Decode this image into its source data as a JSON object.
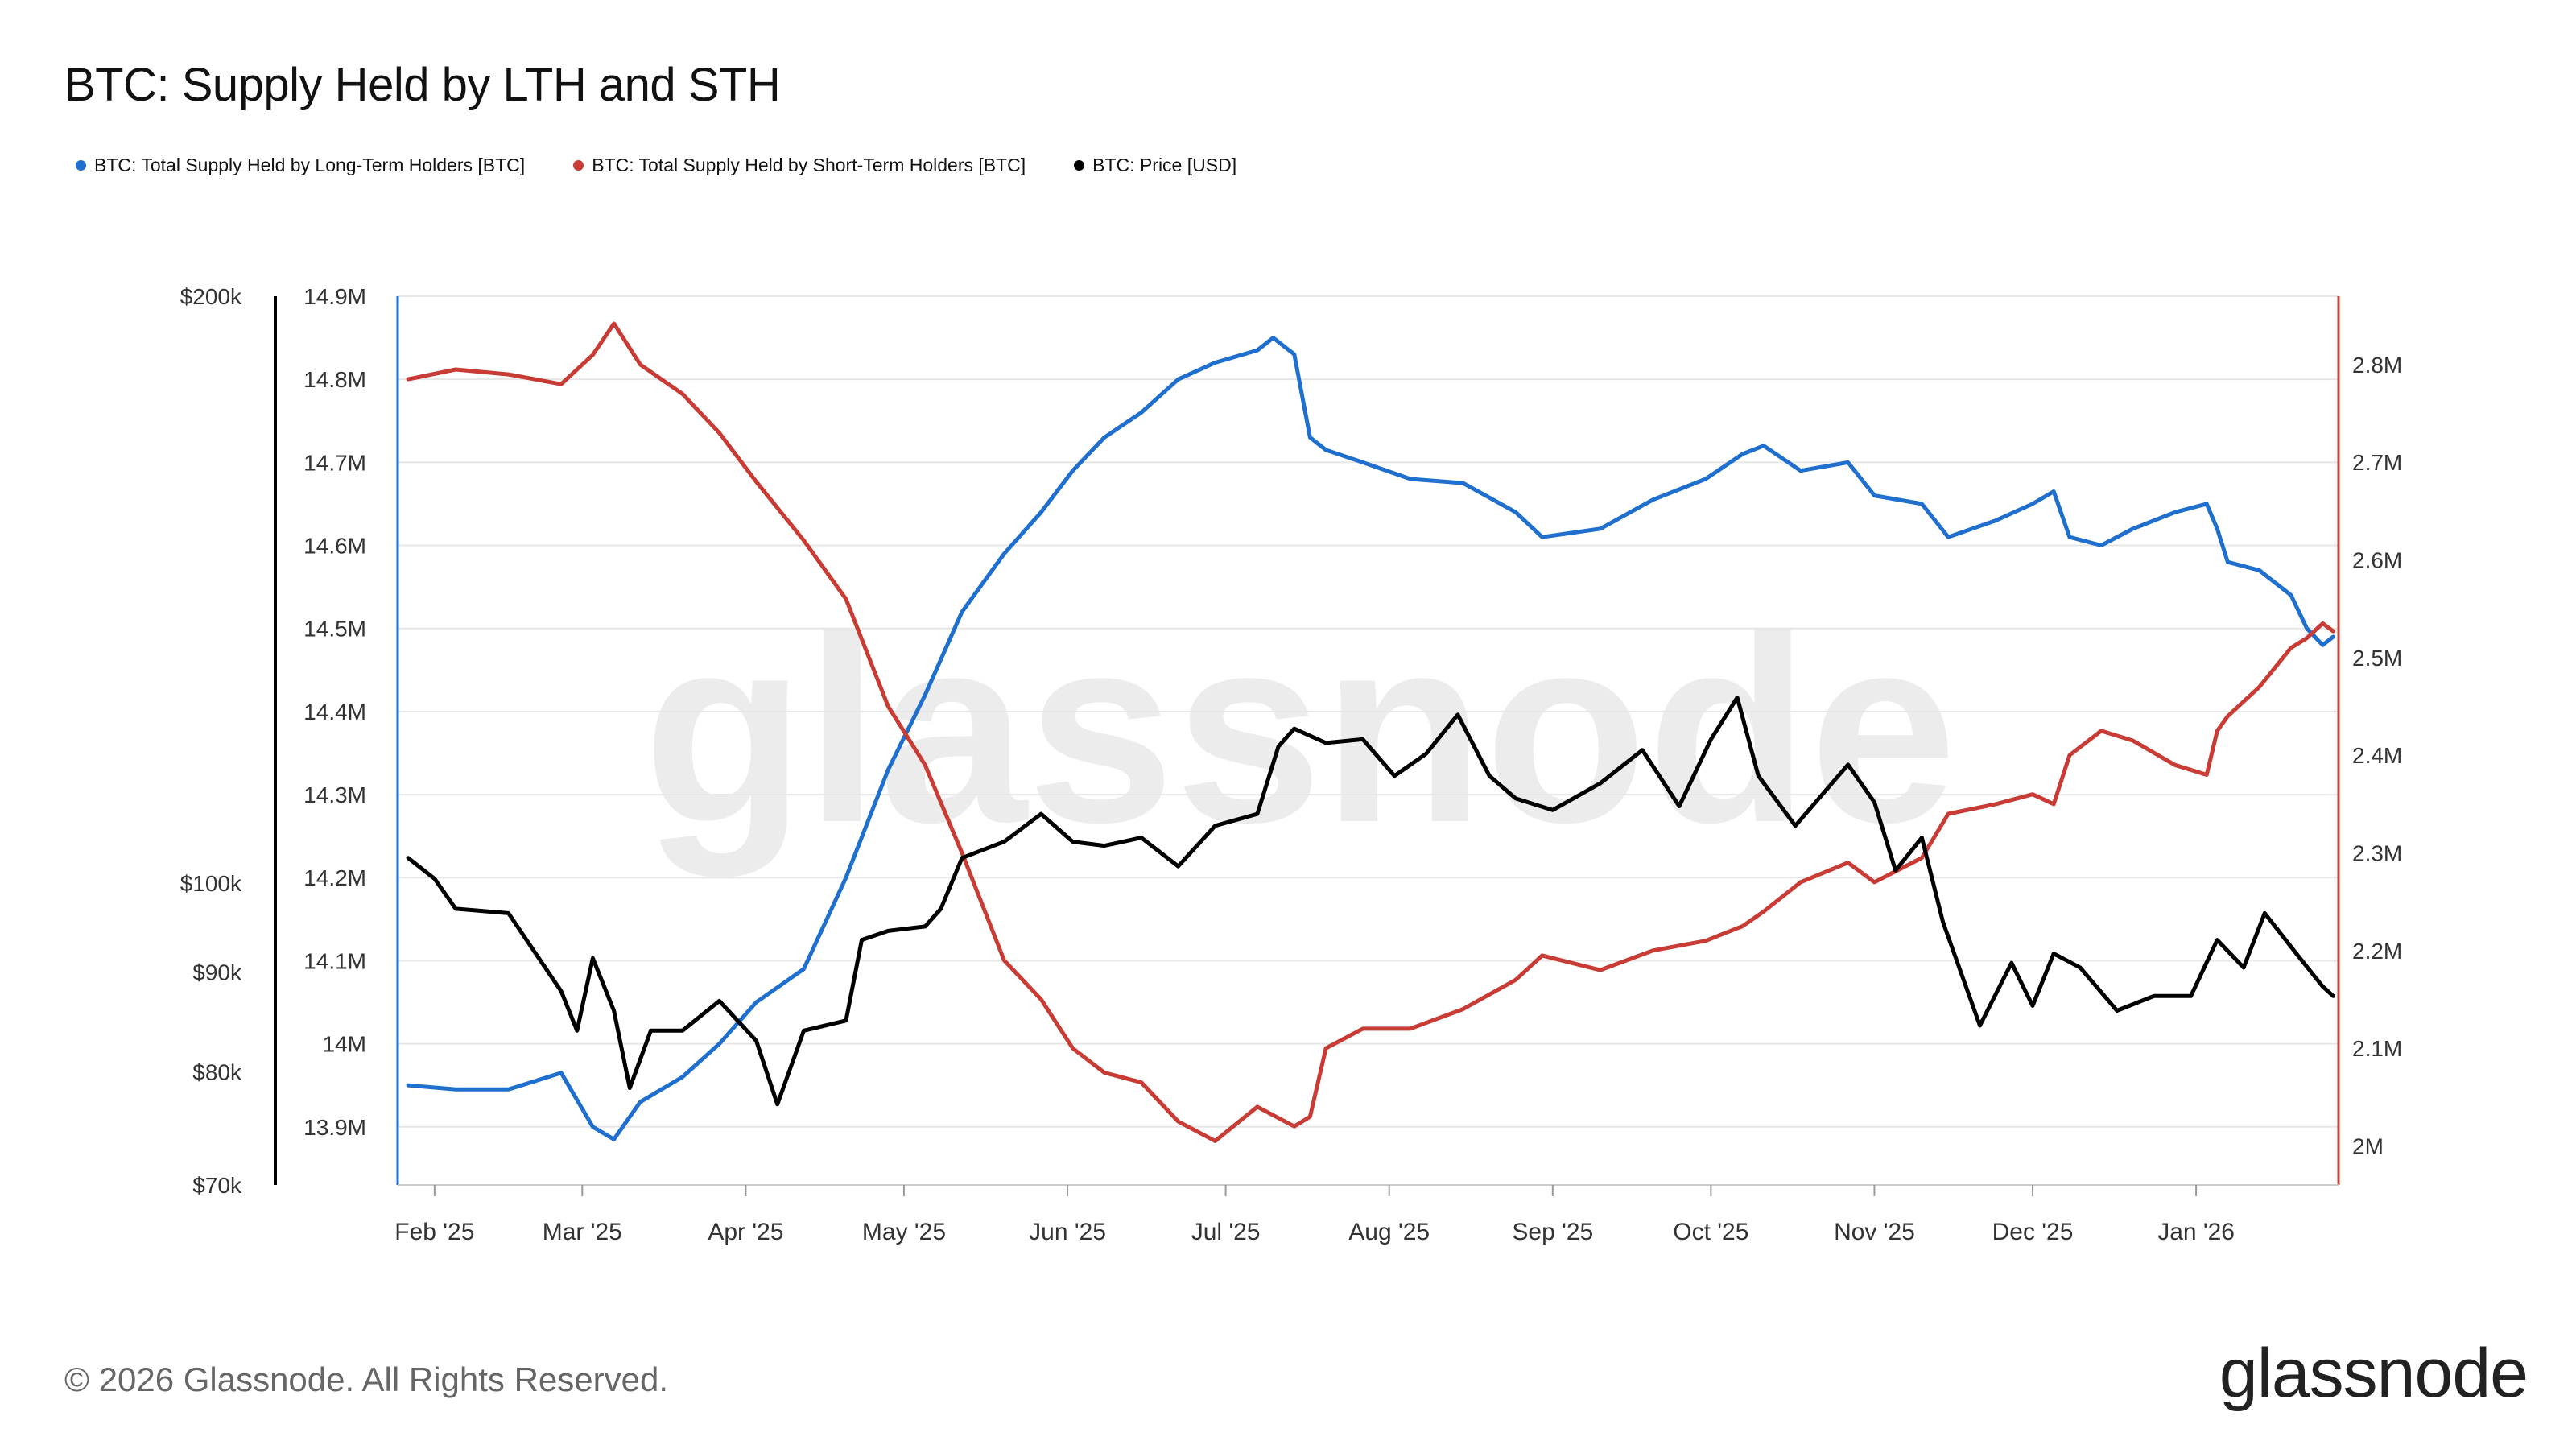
{
  "title": "BTC: Supply Held by LTH and STH",
  "footer": "© 2026 Glassnode. All Rights Reserved.",
  "logo_text": "glassnode",
  "watermark_text": "glassnode",
  "colors": {
    "lth": "#1f6fcf",
    "sth": "#c83c35",
    "price": "#000000"
  },
  "chart_data": {
    "type": "line",
    "title": "BTC: Supply Held by LTH and STH",
    "x_range": [
      "2025-01-25",
      "2026-01-28"
    ],
    "x_tick_labels": [
      "Feb '25",
      "Mar '25",
      "Apr '25",
      "May '25",
      "Jun '25",
      "Jul '25",
      "Aug '25",
      "Sep '25",
      "Oct '25",
      "Nov '25",
      "Dec '25",
      "Jan '26"
    ],
    "axes": {
      "price": {
        "scale": "log",
        "range": [
          70000,
          200000
        ],
        "ticks": [
          70000,
          80000,
          90000,
          100000,
          200000
        ],
        "tick_labels": [
          "$70k",
          "$80k",
          "$90k",
          "$100k",
          "$200k"
        ]
      },
      "lth": {
        "range": [
          13830000,
          14900000
        ],
        "ticks": [
          13900000,
          14000000,
          14100000,
          14200000,
          14300000,
          14400000,
          14500000,
          14600000,
          14700000,
          14800000,
          14900000
        ],
        "tick_labels": [
          "13.9M",
          "14M",
          "14.1M",
          "14.2M",
          "14.3M",
          "14.4M",
          "14.5M",
          "14.6M",
          "14.7M",
          "14.8M",
          "14.9M"
        ]
      },
      "sth": {
        "range": [
          1960000,
          2870000
        ],
        "ticks": [
          2000000,
          2100000,
          2200000,
          2300000,
          2400000,
          2500000,
          2600000,
          2700000,
          2800000
        ],
        "tick_labels": [
          "2M",
          "2.1M",
          "2.2M",
          "2.3M",
          "2.4M",
          "2.5M",
          "2.6M",
          "2.7M",
          "2.8M"
        ]
      }
    },
    "series": [
      {
        "name": "BTC: Total Supply Held by Long-Term Holders [BTC]",
        "axis": "lth",
        "points": [
          [
            "2025-01-27",
            13950000
          ],
          [
            "2025-02-05",
            13945000
          ],
          [
            "2025-02-15",
            13945000
          ],
          [
            "2025-02-25",
            13965000
          ],
          [
            "2025-03-03",
            13900000
          ],
          [
            "2025-03-07",
            13885000
          ],
          [
            "2025-03-12",
            13930000
          ],
          [
            "2025-03-20",
            13960000
          ],
          [
            "2025-03-27",
            14000000
          ],
          [
            "2025-04-03",
            14050000
          ],
          [
            "2025-04-12",
            14090000
          ],
          [
            "2025-04-20",
            14200000
          ],
          [
            "2025-04-28",
            14330000
          ],
          [
            "2025-05-05",
            14420000
          ],
          [
            "2025-05-12",
            14520000
          ],
          [
            "2025-05-20",
            14590000
          ],
          [
            "2025-05-27",
            14640000
          ],
          [
            "2025-06-02",
            14690000
          ],
          [
            "2025-06-08",
            14730000
          ],
          [
            "2025-06-15",
            14760000
          ],
          [
            "2025-06-22",
            14800000
          ],
          [
            "2025-06-29",
            14820000
          ],
          [
            "2025-07-07",
            14835000
          ],
          [
            "2025-07-10",
            14850000
          ],
          [
            "2025-07-14",
            14830000
          ],
          [
            "2025-07-17",
            14730000
          ],
          [
            "2025-07-20",
            14715000
          ],
          [
            "2025-07-27",
            14700000
          ],
          [
            "2025-08-05",
            14680000
          ],
          [
            "2025-08-15",
            14675000
          ],
          [
            "2025-08-25",
            14640000
          ],
          [
            "2025-08-30",
            14610000
          ],
          [
            "2025-09-10",
            14620000
          ],
          [
            "2025-09-20",
            14655000
          ],
          [
            "2025-09-30",
            14680000
          ],
          [
            "2025-10-07",
            14710000
          ],
          [
            "2025-10-11",
            14720000
          ],
          [
            "2025-10-18",
            14690000
          ],
          [
            "2025-10-27",
            14700000
          ],
          [
            "2025-11-01",
            14660000
          ],
          [
            "2025-11-10",
            14650000
          ],
          [
            "2025-11-15",
            14610000
          ],
          [
            "2025-11-24",
            14630000
          ],
          [
            "2025-12-01",
            14650000
          ],
          [
            "2025-12-05",
            14665000
          ],
          [
            "2025-12-08",
            14610000
          ],
          [
            "2025-12-14",
            14600000
          ],
          [
            "2025-12-20",
            14620000
          ],
          [
            "2025-12-28",
            14640000
          ],
          [
            "2026-01-03",
            14650000
          ],
          [
            "2026-01-05",
            14620000
          ],
          [
            "2026-01-07",
            14580000
          ],
          [
            "2026-01-13",
            14570000
          ],
          [
            "2026-01-19",
            14540000
          ],
          [
            "2026-01-22",
            14500000
          ],
          [
            "2026-01-25",
            14480000
          ],
          [
            "2026-01-27",
            14490000
          ]
        ]
      },
      {
        "name": "BTC: Total Supply Held by Short-Term Holders [BTC]",
        "axis": "sth",
        "points": [
          [
            "2025-01-27",
            2785000
          ],
          [
            "2025-02-05",
            2795000
          ],
          [
            "2025-02-15",
            2790000
          ],
          [
            "2025-02-25",
            2780000
          ],
          [
            "2025-03-03",
            2810000
          ],
          [
            "2025-03-07",
            2842000
          ],
          [
            "2025-03-12",
            2800000
          ],
          [
            "2025-03-20",
            2770000
          ],
          [
            "2025-03-27",
            2730000
          ],
          [
            "2025-04-03",
            2680000
          ],
          [
            "2025-04-12",
            2620000
          ],
          [
            "2025-04-20",
            2560000
          ],
          [
            "2025-04-28",
            2450000
          ],
          [
            "2025-05-05",
            2390000
          ],
          [
            "2025-05-12",
            2300000
          ],
          [
            "2025-05-20",
            2190000
          ],
          [
            "2025-05-27",
            2150000
          ],
          [
            "2025-06-02",
            2100000
          ],
          [
            "2025-06-08",
            2075000
          ],
          [
            "2025-06-15",
            2065000
          ],
          [
            "2025-06-22",
            2025000
          ],
          [
            "2025-06-29",
            2005000
          ],
          [
            "2025-07-07",
            2040000
          ],
          [
            "2025-07-14",
            2020000
          ],
          [
            "2025-07-17",
            2030000
          ],
          [
            "2025-07-20",
            2100000
          ],
          [
            "2025-07-27",
            2120000
          ],
          [
            "2025-08-05",
            2120000
          ],
          [
            "2025-08-15",
            2140000
          ],
          [
            "2025-08-25",
            2170000
          ],
          [
            "2025-08-30",
            2195000
          ],
          [
            "2025-09-10",
            2180000
          ],
          [
            "2025-09-20",
            2200000
          ],
          [
            "2025-09-30",
            2210000
          ],
          [
            "2025-10-07",
            2225000
          ],
          [
            "2025-10-11",
            2240000
          ],
          [
            "2025-10-18",
            2270000
          ],
          [
            "2025-10-27",
            2290000
          ],
          [
            "2025-11-01",
            2270000
          ],
          [
            "2025-11-10",
            2295000
          ],
          [
            "2025-11-15",
            2340000
          ],
          [
            "2025-11-24",
            2350000
          ],
          [
            "2025-12-01",
            2360000
          ],
          [
            "2025-12-05",
            2350000
          ],
          [
            "2025-12-08",
            2400000
          ],
          [
            "2025-12-14",
            2425000
          ],
          [
            "2025-12-20",
            2415000
          ],
          [
            "2025-12-28",
            2390000
          ],
          [
            "2026-01-03",
            2380000
          ],
          [
            "2026-01-05",
            2425000
          ],
          [
            "2026-01-07",
            2440000
          ],
          [
            "2026-01-13",
            2470000
          ],
          [
            "2026-01-19",
            2510000
          ],
          [
            "2026-01-22",
            2520000
          ],
          [
            "2026-01-25",
            2535000
          ],
          [
            "2026-01-27",
            2527000
          ]
        ]
      },
      {
        "name": "BTC: Price [USD]",
        "axis": "price",
        "points": [
          [
            "2025-01-27",
            103000
          ],
          [
            "2025-02-01",
            100500
          ],
          [
            "2025-02-05",
            97000
          ],
          [
            "2025-02-15",
            96500
          ],
          [
            "2025-02-25",
            88000
          ],
          [
            "2025-02-28",
            84000
          ],
          [
            "2025-03-03",
            91500
          ],
          [
            "2025-03-07",
            86000
          ],
          [
            "2025-03-10",
            78500
          ],
          [
            "2025-03-14",
            84000
          ],
          [
            "2025-03-20",
            84000
          ],
          [
            "2025-03-27",
            87000
          ],
          [
            "2025-04-03",
            83000
          ],
          [
            "2025-04-07",
            77000
          ],
          [
            "2025-04-12",
            84000
          ],
          [
            "2025-04-20",
            85000
          ],
          [
            "2025-04-23",
            93500
          ],
          [
            "2025-04-28",
            94500
          ],
          [
            "2025-05-05",
            95000
          ],
          [
            "2025-05-08",
            97000
          ],
          [
            "2025-05-12",
            103000
          ],
          [
            "2025-05-20",
            105000
          ],
          [
            "2025-05-27",
            108500
          ],
          [
            "2025-06-02",
            105000
          ],
          [
            "2025-06-08",
            104500
          ],
          [
            "2025-06-15",
            105500
          ],
          [
            "2025-06-22",
            102000
          ],
          [
            "2025-06-29",
            107000
          ],
          [
            "2025-07-07",
            108500
          ],
          [
            "2025-07-11",
            117500
          ],
          [
            "2025-07-14",
            120000
          ],
          [
            "2025-07-20",
            118000
          ],
          [
            "2025-07-27",
            118500
          ],
          [
            "2025-08-02",
            113500
          ],
          [
            "2025-08-08",
            116500
          ],
          [
            "2025-08-14",
            122000
          ],
          [
            "2025-08-20",
            113500
          ],
          [
            "2025-08-25",
            110500
          ],
          [
            "2025-09-01",
            109000
          ],
          [
            "2025-09-10",
            112500
          ],
          [
            "2025-09-18",
            117000
          ],
          [
            "2025-09-25",
            109500
          ],
          [
            "2025-10-01",
            118500
          ],
          [
            "2025-10-06",
            124500
          ],
          [
            "2025-10-10",
            113500
          ],
          [
            "2025-10-17",
            107000
          ],
          [
            "2025-10-27",
            115000
          ],
          [
            "2025-11-01",
            110000
          ],
          [
            "2025-11-05",
            101500
          ],
          [
            "2025-11-10",
            105500
          ],
          [
            "2025-11-14",
            95500
          ],
          [
            "2025-11-21",
            84500
          ],
          [
            "2025-11-27",
            91000
          ],
          [
            "2025-12-01",
            86500
          ],
          [
            "2025-12-05",
            92000
          ],
          [
            "2025-12-10",
            90500
          ],
          [
            "2025-12-17",
            86000
          ],
          [
            "2025-12-24",
            87500
          ],
          [
            "2025-12-31",
            87500
          ],
          [
            "2026-01-05",
            93500
          ],
          [
            "2026-01-10",
            90500
          ],
          [
            "2026-01-14",
            96500
          ],
          [
            "2026-01-20",
            92000
          ],
          [
            "2026-01-25",
            88500
          ],
          [
            "2026-01-27",
            87500
          ]
        ]
      }
    ]
  }
}
